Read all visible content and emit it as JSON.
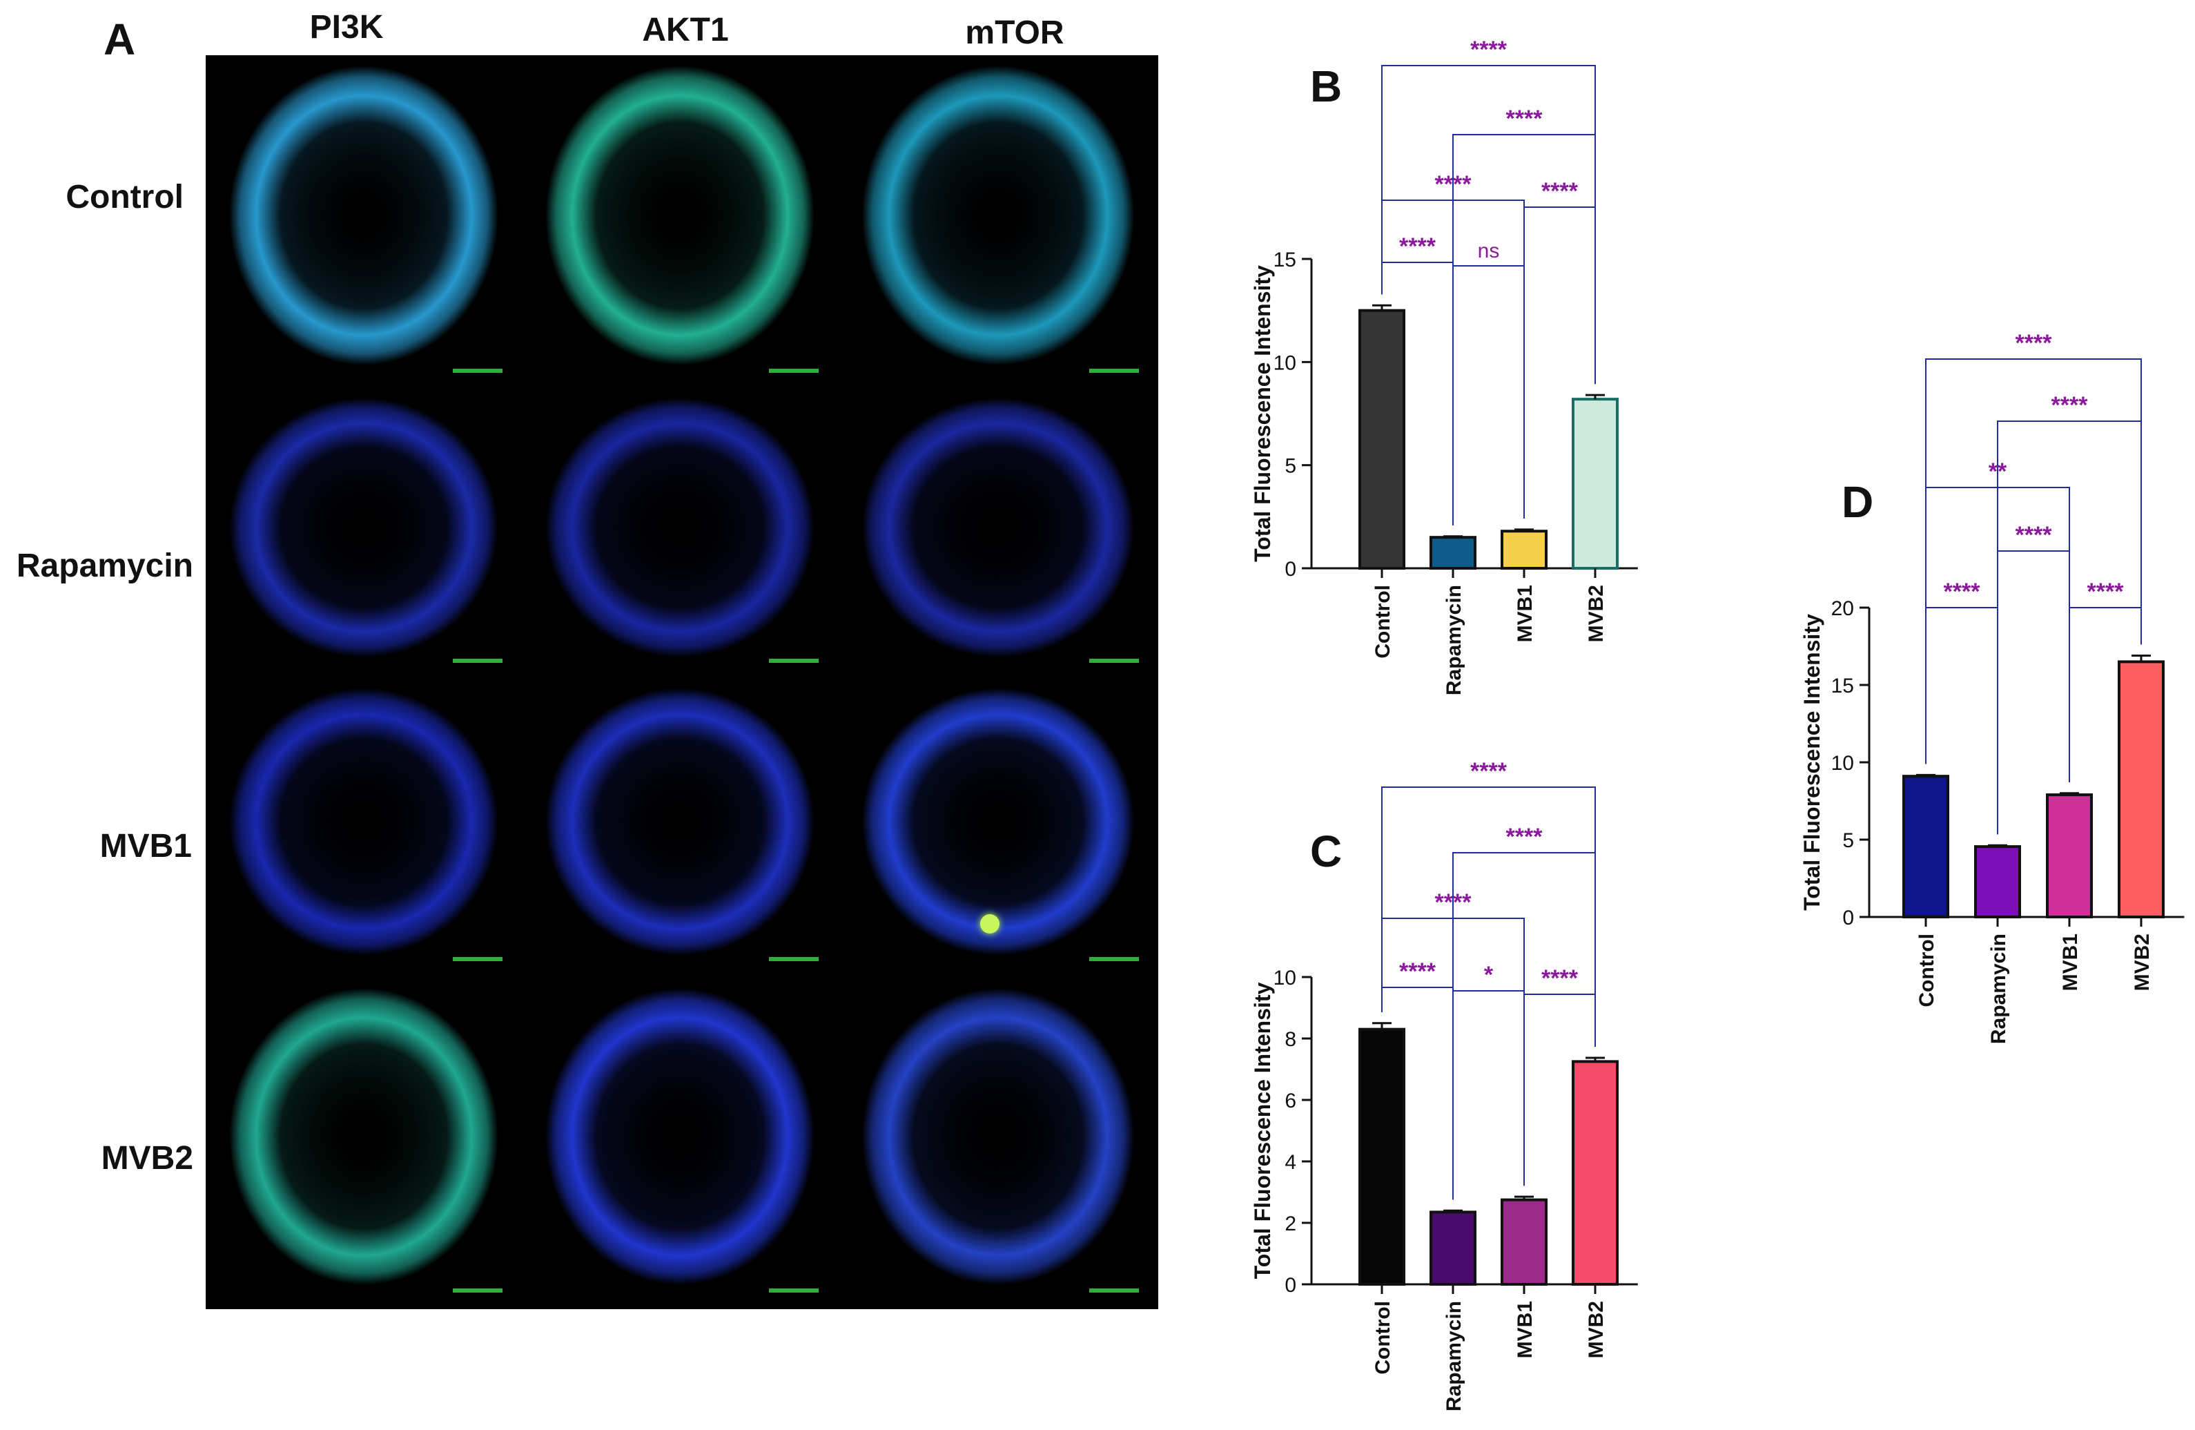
{
  "figure": {
    "panel_a": {
      "letter": "A",
      "columns": [
        "PI3K",
        "AKT1",
        "mTOR"
      ],
      "rows": [
        "Control",
        "Rapamycin",
        "MVB1",
        "MVB2"
      ],
      "ring_colors": [
        [
          "#2aa0d8",
          "#24b89a",
          "#1fa0c4"
        ],
        [
          "#1c2cb0",
          "#1a28a8",
          "#1c2aa8"
        ],
        [
          "#1a2ab8",
          "#1e30c4",
          "#2240d8"
        ],
        [
          "#22b09a",
          "#2238d8",
          "#2646d0"
        ]
      ]
    }
  },
  "chart_data": [
    {
      "panel": "B",
      "type": "bar",
      "categories": [
        "Control",
        "Rapamycin",
        "MVB1",
        "MVB2"
      ],
      "values": [
        12.5,
        1.5,
        1.8,
        8.2
      ],
      "errors": [
        0.25,
        0.05,
        0.08,
        0.2
      ],
      "colors": [
        "#353535",
        "#0d5c8c",
        "#f6d04a",
        "#cdebdc"
      ],
      "edge_colors": [
        "#111111",
        "#111111",
        "#111111",
        "#1b6e63"
      ],
      "ylabel": "Total Fluorescence Intensity",
      "ylim": [
        0,
        15
      ],
      "yticks": [
        0,
        5,
        10,
        15
      ],
      "grid": false,
      "comparisons": [
        {
          "a": 0,
          "b": 3,
          "label": "****"
        },
        {
          "a": 1,
          "b": 3,
          "label": "****"
        },
        {
          "a": 0,
          "b": 2,
          "label": "****"
        },
        {
          "a": 2,
          "b": 3,
          "label": "****"
        },
        {
          "a": 0,
          "b": 1,
          "label": "****"
        },
        {
          "a": 1,
          "b": 2,
          "label": "ns"
        }
      ]
    },
    {
      "panel": "C",
      "type": "bar",
      "categories": [
        "Control",
        "Rapamycin",
        "MVB1",
        "MVB2"
      ],
      "values": [
        8.3,
        2.35,
        2.75,
        7.25
      ],
      "errors": [
        0.2,
        0.05,
        0.1,
        0.12
      ],
      "colors": [
        "#050505",
        "#4a0b6e",
        "#9c2a8a",
        "#f54b6a"
      ],
      "edge_colors": [
        "#111111",
        "#111111",
        "#111111",
        "#111111"
      ],
      "ylabel": "Total Fluorescence Intensity",
      "ylim": [
        0,
        10
      ],
      "yticks": [
        0,
        2,
        4,
        6,
        8,
        10
      ],
      "grid": false,
      "comparisons": [
        {
          "a": 0,
          "b": 3,
          "label": "****"
        },
        {
          "a": 1,
          "b": 3,
          "label": "****"
        },
        {
          "a": 0,
          "b": 2,
          "label": "****"
        },
        {
          "a": 0,
          "b": 1,
          "label": "****"
        },
        {
          "a": 1,
          "b": 2,
          "label": "*"
        },
        {
          "a": 2,
          "b": 3,
          "label": "****"
        }
      ]
    },
    {
      "panel": "D",
      "type": "bar",
      "categories": [
        "Control",
        "Rapamycin",
        "MVB1",
        "MVB2"
      ],
      "values": [
        9.1,
        4.55,
        7.9,
        16.5
      ],
      "errors": [
        0.08,
        0.08,
        0.1,
        0.4
      ],
      "colors": [
        "#0f158a",
        "#7d0fb6",
        "#cf2f9a",
        "#fc5f5f"
      ],
      "edge_colors": [
        "#111111",
        "#111111",
        "#111111",
        "#111111"
      ],
      "ylabel": "Total Fluorescence Intensity",
      "ylim": [
        0,
        20
      ],
      "yticks": [
        0,
        5,
        10,
        15,
        20
      ],
      "grid": false,
      "comparisons": [
        {
          "a": 0,
          "b": 3,
          "label": "****"
        },
        {
          "a": 1,
          "b": 3,
          "label": "****"
        },
        {
          "a": 0,
          "b": 2,
          "label": "**"
        },
        {
          "a": 1,
          "b": 2,
          "label": "****"
        },
        {
          "a": 0,
          "b": 1,
          "label": "****"
        },
        {
          "a": 2,
          "b": 3,
          "label": "****"
        }
      ]
    }
  ],
  "style": {
    "sig_text_color": "#8a1a9b",
    "bracket_color": "#1f2d9a",
    "axis_color": "#111111"
  }
}
